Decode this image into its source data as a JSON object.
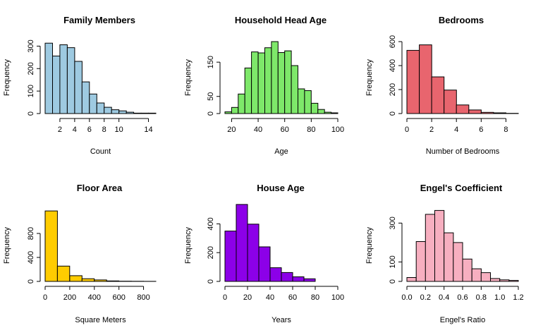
{
  "chart_data": [
    {
      "type": "bar",
      "title": "Family Members",
      "xlabel": "Count",
      "ylabel": "Frequency",
      "color": "#9ecae1",
      "bin_edges": [
        0,
        1,
        2,
        3,
        4,
        5,
        6,
        7,
        8,
        9,
        10,
        11,
        12,
        13,
        14,
        15
      ],
      "values": [
        313,
        256,
        306,
        293,
        232,
        141,
        87,
        47,
        28,
        17,
        12,
        6,
        2,
        2,
        2
      ],
      "xlim": [
        0,
        15
      ],
      "ylim": [
        0,
        320
      ],
      "xticks": [
        2,
        4,
        6,
        8,
        10,
        14
      ],
      "xtick_labels": [
        "2",
        "4",
        "6",
        "8",
        "10",
        "14"
      ],
      "yticks": [
        0,
        100,
        200,
        300
      ],
      "ytick_labels": [
        "0",
        "100",
        "200",
        "300"
      ]
    },
    {
      "type": "bar",
      "title": "Household Head Age",
      "xlabel": "Age",
      "ylabel": "Frequency",
      "color": "#7ee86a",
      "bin_edges": [
        15,
        20,
        25,
        30,
        35,
        40,
        45,
        50,
        55,
        60,
        65,
        70,
        75,
        80,
        85,
        90,
        95,
        100
      ],
      "values": [
        5,
        18,
        57,
        133,
        180,
        177,
        192,
        210,
        178,
        183,
        140,
        72,
        67,
        30,
        12,
        4,
        2
      ],
      "xlim": [
        15,
        100
      ],
      "ylim": [
        0,
        210
      ],
      "xticks": [
        20,
        40,
        60,
        80,
        100
      ],
      "xtick_labels": [
        "20",
        "40",
        "60",
        "80",
        "100"
      ],
      "yticks": [
        0,
        50,
        150
      ],
      "ytick_labels": [
        "0",
        "50",
        "150"
      ]
    },
    {
      "type": "bar",
      "title": "Bedrooms",
      "xlabel": "Number of Bedrooms",
      "ylabel": "Frequency",
      "color": "#e8656e",
      "bin_edges": [
        0,
        1,
        2,
        3,
        4,
        5,
        6,
        7,
        8,
        9
      ],
      "values": [
        527,
        573,
        306,
        196,
        72,
        30,
        10,
        6,
        2
      ],
      "xlim": [
        0,
        9
      ],
      "ylim": [
        0,
        600
      ],
      "xticks": [
        0,
        2,
        4,
        6,
        8
      ],
      "xtick_labels": [
        "0",
        "2",
        "4",
        "6",
        "8"
      ],
      "yticks": [
        0,
        200,
        400,
        600
      ],
      "ytick_labels": [
        "0",
        "200",
        "400",
        "600"
      ]
    },
    {
      "type": "bar",
      "title": "Floor Area",
      "xlabel": "Square Meters",
      "ylabel": "Frequency",
      "color": "#ffcc00",
      "bin_edges": [
        0,
        100,
        200,
        300,
        400,
        500,
        600,
        700,
        800,
        900
      ],
      "values": [
        1175,
        255,
        95,
        45,
        25,
        8,
        4,
        2,
        1
      ],
      "xlim": [
        0,
        900
      ],
      "ylim": [
        0,
        1200
      ],
      "xticks": [
        0,
        200,
        400,
        600,
        800
      ],
      "xtick_labels": [
        "0",
        "200",
        "400",
        "600",
        "800"
      ],
      "yticks": [
        0,
        400,
        800
      ],
      "ytick_labels": [
        "0",
        "400",
        "800"
      ]
    },
    {
      "type": "bar",
      "title": "House Age",
      "xlabel": "Years",
      "ylabel": "Frequency",
      "color": "#8c00e8",
      "bin_edges": [
        0,
        10,
        20,
        30,
        40,
        50,
        60,
        70,
        80,
        90,
        100
      ],
      "values": [
        350,
        535,
        398,
        240,
        95,
        62,
        32,
        18,
        0,
        0
      ],
      "xlim": [
        0,
        100
      ],
      "ylim": [
        0,
        500
      ],
      "xticks": [
        0,
        20,
        40,
        60,
        80,
        100
      ],
      "xtick_labels": [
        "0",
        "20",
        "40",
        "60",
        "80",
        "100"
      ],
      "yticks": [
        0,
        200,
        400
      ],
      "ytick_labels": [
        "0",
        "200",
        "400"
      ]
    },
    {
      "type": "bar",
      "title": "Engel's Coefficient",
      "xlabel": "Engel's Ratio",
      "ylabel": "Frequency",
      "color": "#f7afc0",
      "bin_edges": [
        0.0,
        0.1,
        0.2,
        0.3,
        0.4,
        0.5,
        0.6,
        0.7,
        0.8,
        0.9,
        1.0,
        1.1,
        1.2
      ],
      "values": [
        20,
        205,
        345,
        365,
        250,
        200,
        115,
        65,
        45,
        15,
        8,
        5
      ],
      "xlim": [
        0.0,
        1.2
      ],
      "ylim": [
        0,
        370
      ],
      "xticks": [
        0.0,
        0.2,
        0.4,
        0.6,
        0.8,
        1.0,
        1.2
      ],
      "xtick_labels": [
        "0.0",
        "0.2",
        "0.4",
        "0.6",
        "0.8",
        "1.0",
        "1.2"
      ],
      "yticks": [
        0,
        100,
        300
      ],
      "ytick_labels": [
        "0",
        "100",
        "300"
      ]
    }
  ]
}
